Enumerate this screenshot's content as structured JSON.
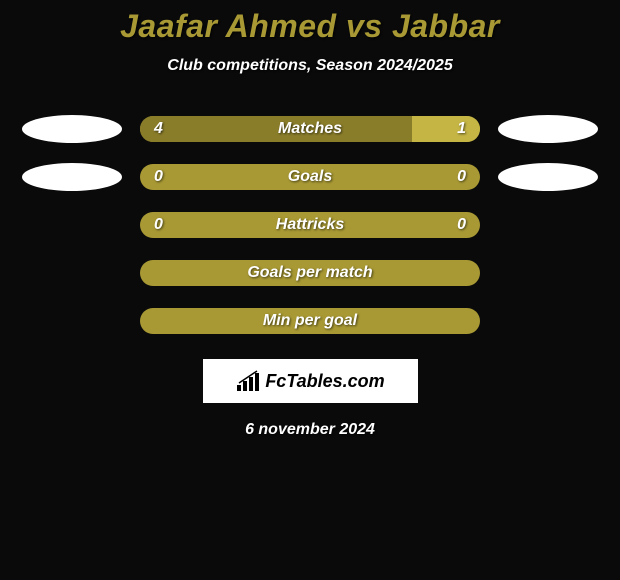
{
  "title": "Jaafar Ahmed vs Jabbar",
  "subtitle": "Club competitions, Season 2024/2025",
  "colors": {
    "background": "#0a0a0a",
    "accent": "#a89934",
    "bar_base": "#a89934",
    "bar_left_dark": "#8a7d2a",
    "bar_right_light": "#c4b545",
    "white": "#ffffff",
    "text_white": "#ffffff"
  },
  "stats": [
    {
      "label": "Matches",
      "left_value": "4",
      "right_value": "1",
      "left_pct": 80,
      "right_pct": 20,
      "show_ovals": true
    },
    {
      "label": "Goals",
      "left_value": "0",
      "right_value": "0",
      "left_pct": 0,
      "right_pct": 0,
      "show_ovals": true
    },
    {
      "label": "Hattricks",
      "left_value": "0",
      "right_value": "0",
      "left_pct": 0,
      "right_pct": 0,
      "show_ovals": false
    },
    {
      "label": "Goals per match",
      "left_value": "",
      "right_value": "",
      "left_pct": 0,
      "right_pct": 0,
      "show_ovals": false
    },
    {
      "label": "Min per goal",
      "left_value": "",
      "right_value": "",
      "left_pct": 0,
      "right_pct": 0,
      "show_ovals": false
    }
  ],
  "watermark": {
    "text": "FcTables.com"
  },
  "date": "6 november 2024",
  "typography": {
    "title_fontsize": 32,
    "subtitle_fontsize": 16,
    "stat_fontsize": 16,
    "date_fontsize": 16
  }
}
